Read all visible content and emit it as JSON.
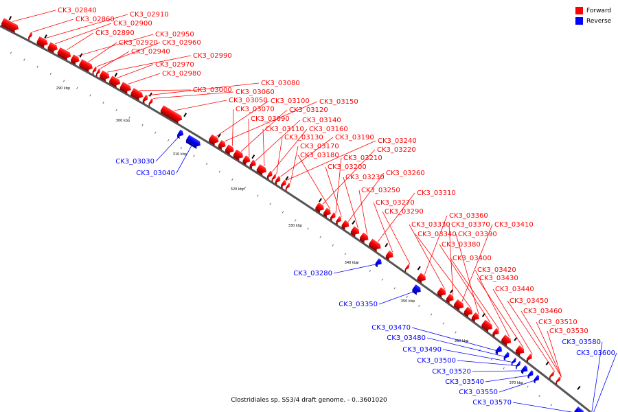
{
  "title": "Clostridiales sp. SS3/4 draft genome. - 0..3601020",
  "legend": [
    {
      "label": "Forward",
      "color": "#ff0000"
    },
    {
      "label": "Reverse",
      "color": "#0000ff"
    }
  ],
  "scale_labels": [
    "290 kbp",
    "300 kbp",
    "310 kbp",
    "320 kbp",
    "330 kbp",
    "340 kbp",
    "350 kbp",
    "360 kbp",
    "370 kbp"
  ],
  "forward_labels": [
    "CK3_02840",
    "CK3_02860",
    "CK3_02910",
    "CK3_02900",
    "CK3_02890",
    "CK3_02950",
    "CK3_02920",
    "CK3_02960",
    "CK3_02940",
    "CK3_02990",
    "CK3_02970",
    "CK3_02980",
    "CK3_03000",
    "CK3_03080",
    "CK3_03060",
    "CK3_03050",
    "CK3_03100",
    "CK3_03150",
    "CK3_03070",
    "CK3_03120",
    "CK3_03090",
    "CK3_03140",
    "CK3_03110",
    "CK3_03160",
    "CK3_03130",
    "CK3_03190",
    "CK3_03240",
    "CK3_03170",
    "CK3_03220",
    "CK3_03180",
    "CK3_03210",
    "CK3_03200",
    "CK3_03260",
    "CK3_03230",
    "CK3_03250",
    "CK3_03310",
    "CK3_03270",
    "CK3_03290",
    "CK3_03360",
    "CK3_03330",
    "CK3_03370",
    "CK3_03410",
    "CK3_03340",
    "CK3_03390",
    "CK3_03380",
    "CK3_03400",
    "CK3_03420",
    "CK3_03430",
    "CK3_03440",
    "CK3_03450",
    "CK3_03460",
    "CK3_03510",
    "CK3_03530"
  ],
  "reverse_labels": [
    "CK3_03030",
    "CK3_03040",
    "CK3_03280",
    "CK3_03350",
    "CK3_03470",
    "CK3_03480",
    "CK3_03490",
    "CK3_03500",
    "CK3_03520",
    "CK3_03540",
    "CK3_03550",
    "CK3_03570",
    "CK3_03580",
    "CK3_03600"
  ],
  "colors": {
    "forward": "#ff0000",
    "reverse": "#0000ff",
    "backbone": "#555555"
  }
}
